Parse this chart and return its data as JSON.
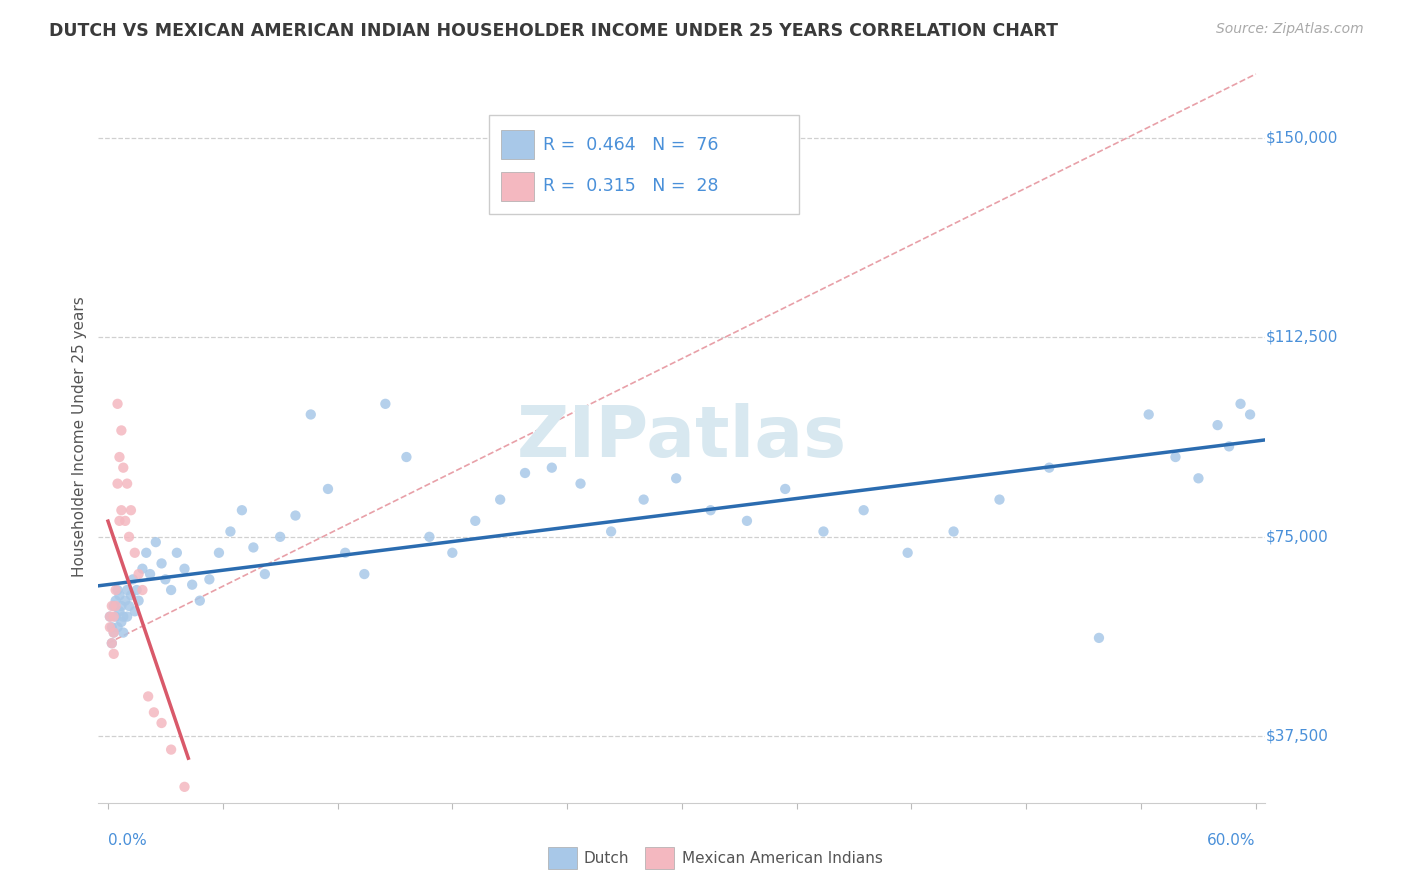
{
  "title": "DUTCH VS MEXICAN AMERICAN INDIAN HOUSEHOLDER INCOME UNDER 25 YEARS CORRELATION CHART",
  "source": "Source: ZipAtlas.com",
  "ylabel": "Householder Income Under 25 years",
  "xlim": [
    -0.005,
    0.605
  ],
  "ylim": [
    25000,
    162500
  ],
  "yticks": [
    37500,
    75000,
    112500,
    150000
  ],
  "ytick_labels": [
    "$37,500",
    "$75,000",
    "$112,500",
    "$150,000"
  ],
  "dutch_color": "#a8c8e8",
  "dutch_line_color": "#2b6cb0",
  "mexican_color": "#f4b8c0",
  "mexican_line_color": "#d9596a",
  "axis_label_color": "#4a90d9",
  "background_color": "#ffffff",
  "grid_color": "#d0d0d0",
  "title_color": "#3a3a3a",
  "source_color": "#aaaaaa",
  "watermark": "ZIPatlas",
  "watermark_color": "#d8e8f0",
  "diagonal_color": "#e8a0a8",
  "dutch_R": 0.464,
  "dutch_N": 76,
  "mexican_R": 0.315,
  "mexican_N": 28,
  "dutch_x": [
    0.001,
    0.002,
    0.002,
    0.003,
    0.003,
    0.004,
    0.004,
    0.005,
    0.005,
    0.006,
    0.006,
    0.007,
    0.007,
    0.008,
    0.008,
    0.009,
    0.01,
    0.01,
    0.011,
    0.012,
    0.013,
    0.014,
    0.015,
    0.016,
    0.018,
    0.02,
    0.022,
    0.025,
    0.028,
    0.03,
    0.033,
    0.036,
    0.04,
    0.044,
    0.048,
    0.053,
    0.058,
    0.064,
    0.07,
    0.076,
    0.082,
    0.09,
    0.098,
    0.106,
    0.115,
    0.124,
    0.134,
    0.145,
    0.156,
    0.168,
    0.18,
    0.192,
    0.205,
    0.218,
    0.232,
    0.247,
    0.263,
    0.28,
    0.297,
    0.315,
    0.334,
    0.354,
    0.374,
    0.395,
    0.418,
    0.442,
    0.466,
    0.492,
    0.518,
    0.544,
    0.558,
    0.57,
    0.58,
    0.586,
    0.592,
    0.597
  ],
  "dutch_y": [
    60000,
    55000,
    58000,
    62000,
    57000,
    60000,
    63000,
    58000,
    65000,
    61000,
    64000,
    59000,
    62000,
    57000,
    60000,
    63000,
    60000,
    65000,
    62000,
    64000,
    67000,
    61000,
    65000,
    63000,
    69000,
    72000,
    68000,
    74000,
    70000,
    67000,
    65000,
    72000,
    69000,
    66000,
    63000,
    67000,
    72000,
    76000,
    80000,
    73000,
    68000,
    75000,
    79000,
    98000,
    84000,
    72000,
    68000,
    100000,
    90000,
    75000,
    72000,
    78000,
    82000,
    87000,
    88000,
    85000,
    76000,
    82000,
    86000,
    80000,
    78000,
    84000,
    76000,
    80000,
    72000,
    76000,
    82000,
    88000,
    56000,
    98000,
    90000,
    86000,
    96000,
    92000,
    100000,
    98000
  ],
  "mexican_x": [
    0.001,
    0.001,
    0.002,
    0.002,
    0.003,
    0.003,
    0.003,
    0.004,
    0.004,
    0.005,
    0.005,
    0.006,
    0.006,
    0.007,
    0.007,
    0.008,
    0.009,
    0.01,
    0.011,
    0.012,
    0.014,
    0.016,
    0.018,
    0.021,
    0.024,
    0.028,
    0.033,
    0.04
  ],
  "mexican_y": [
    60000,
    58000,
    62000,
    55000,
    57000,
    60000,
    53000,
    65000,
    62000,
    100000,
    85000,
    90000,
    78000,
    80000,
    95000,
    88000,
    78000,
    85000,
    75000,
    80000,
    72000,
    68000,
    65000,
    45000,
    42000,
    40000,
    35000,
    28000
  ]
}
